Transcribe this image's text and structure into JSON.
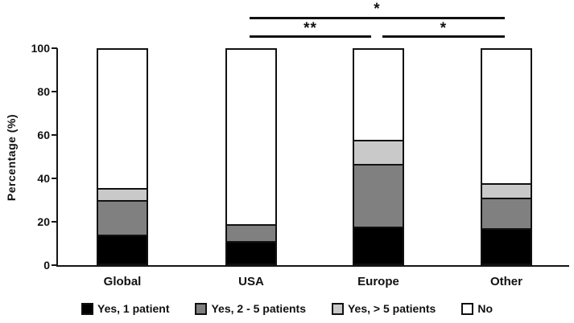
{
  "chart_data": {
    "type": "bar",
    "subtype": "stacked-percentage",
    "title": "",
    "ylabel": "Percentage (%)",
    "xlabel": "",
    "ylim": [
      0,
      100
    ],
    "yticks": [
      0,
      20,
      40,
      60,
      80,
      100
    ],
    "grid": "off",
    "legend_position": "bottom",
    "categories": [
      "Global",
      "USA",
      "Europe",
      "Other"
    ],
    "series": [
      {
        "name": "Yes, 1 patient",
        "color": "#000000",
        "values": [
          13,
          10,
          17,
          16
        ]
      },
      {
        "name": "Yes, 2 - 5 patients",
        "color": "#808080",
        "values": [
          16,
          7,
          29,
          14
        ]
      },
      {
        "name": "Yes, > 5 patients",
        "color": "#c9c9c9",
        "values": [
          5,
          0,
          11,
          6
        ]
      },
      {
        "name": "No",
        "color": "#ffffff",
        "values": [
          66,
          83,
          43,
          64
        ]
      }
    ],
    "significance_annotations": [
      {
        "label": "*",
        "from": "USA",
        "to": "Other",
        "row": 1
      },
      {
        "label": "**",
        "from": "USA",
        "to": "Europe",
        "row": 2
      },
      {
        "label": "*",
        "from": "Europe",
        "to": "Other",
        "row": 2
      }
    ],
    "colors": {
      "axis": "#151515",
      "bar_border": "#111111",
      "background": "#ffffff"
    }
  }
}
